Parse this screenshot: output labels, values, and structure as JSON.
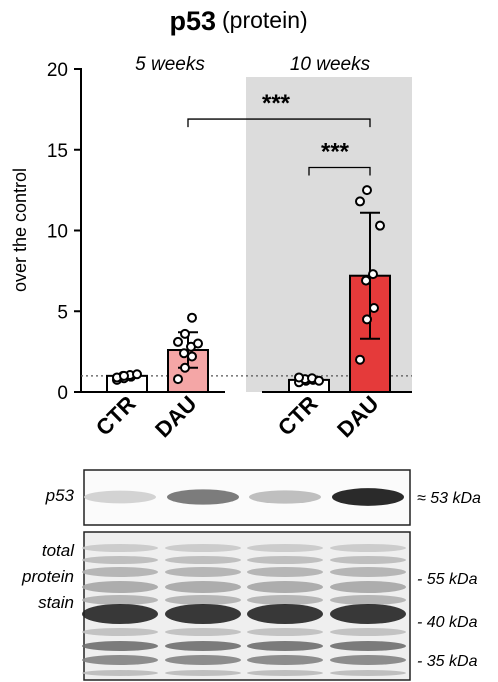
{
  "chart_data": {
    "type": "bar",
    "title": "p53",
    "subtitle": "(protein)",
    "ylabel": "over the control",
    "ylim": [
      0,
      20
    ],
    "yticks": [
      "0",
      "5",
      "10",
      "15",
      "20"
    ],
    "reference_line": 1,
    "groups": [
      {
        "label": "5 weeks",
        "shaded": false
      },
      {
        "label": "10 weeks",
        "shaded": true
      }
    ],
    "categories": [
      "CTR",
      "DAU",
      "CTR",
      "DAU"
    ],
    "bars": [
      {
        "category": "CTR",
        "group": "5 weeks",
        "mean": 1.0,
        "sd": 0.1,
        "color": "#ffffff",
        "points": [
          0.75,
          0.85,
          0.95,
          1.0,
          1.05,
          1.1,
          0.9,
          1.0
        ]
      },
      {
        "category": "DAU",
        "group": "5 weeks",
        "mean": 2.6,
        "sd": 1.1,
        "color": "#f4a6a6",
        "points": [
          0.8,
          1.5,
          2.2,
          2.4,
          2.8,
          3.0,
          3.1,
          3.6,
          4.6
        ]
      },
      {
        "category": "CTR",
        "group": "10 weeks",
        "mean": 0.75,
        "sd": 0.15,
        "color": "#ffffff",
        "points": [
          0.6,
          0.7,
          0.75,
          0.8,
          0.85,
          0.7,
          0.9
        ]
      },
      {
        "category": "DAU",
        "group": "10 weeks",
        "mean": 7.2,
        "sd": 3.9,
        "color": "#e53a3a",
        "points": [
          2.0,
          4.5,
          5.2,
          6.9,
          7.3,
          10.3,
          11.8,
          12.5
        ]
      }
    ],
    "significance": [
      {
        "from": 1,
        "to": 3,
        "label": "***"
      },
      {
        "from": 2,
        "to": 3,
        "label": "***"
      }
    ],
    "blot": {
      "target_label": "p53",
      "target_kda": "≈ 53 kDa",
      "stain_label_lines": [
        "total",
        "protein",
        "stain"
      ],
      "markers": [
        "- 55 kDa",
        "- 40 kDa",
        "- 35 kDa"
      ],
      "target_band_intensities": [
        0.12,
        0.55,
        0.22,
        0.95
      ]
    }
  }
}
